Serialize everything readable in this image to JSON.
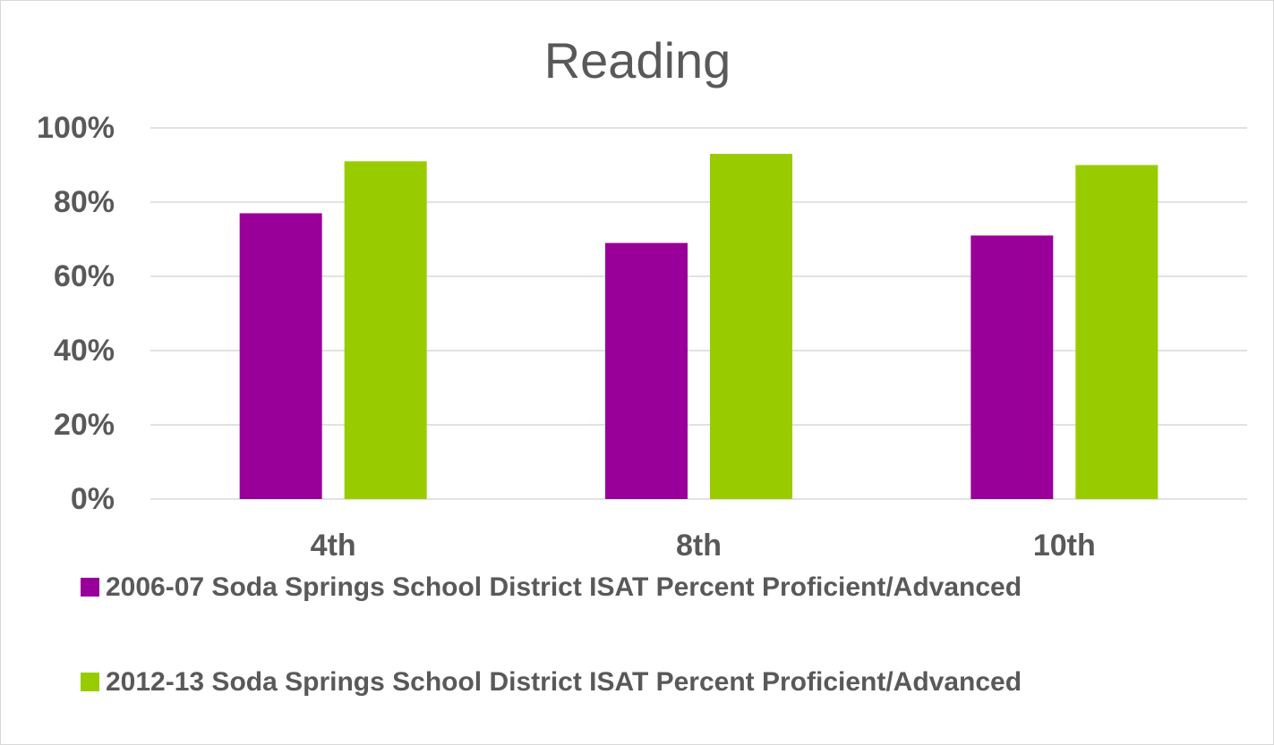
{
  "chart_data": {
    "type": "bar",
    "title": "Reading",
    "categories": [
      "4th",
      "8th",
      "10th"
    ],
    "series": [
      {
        "name": "2006-07 Soda Springs School District ISAT Percent Proficient/Advanced",
        "color": "#990099",
        "values": [
          77,
          69,
          71
        ]
      },
      {
        "name": "2012-13 Soda Springs School District ISAT Percent Proficient/Advanced",
        "color": "#99cc00",
        "values": [
          91,
          93,
          90
        ]
      }
    ],
    "ylim": [
      0,
      100
    ],
    "yticks": [
      {
        "value": 0,
        "label": "0%"
      },
      {
        "value": 20,
        "label": "20%"
      },
      {
        "value": 40,
        "label": "40%"
      },
      {
        "value": 60,
        "label": "60%"
      },
      {
        "value": 80,
        "label": "80%"
      },
      {
        "value": 100,
        "label": "100%"
      }
    ],
    "grid": true,
    "legend": "bottom"
  }
}
